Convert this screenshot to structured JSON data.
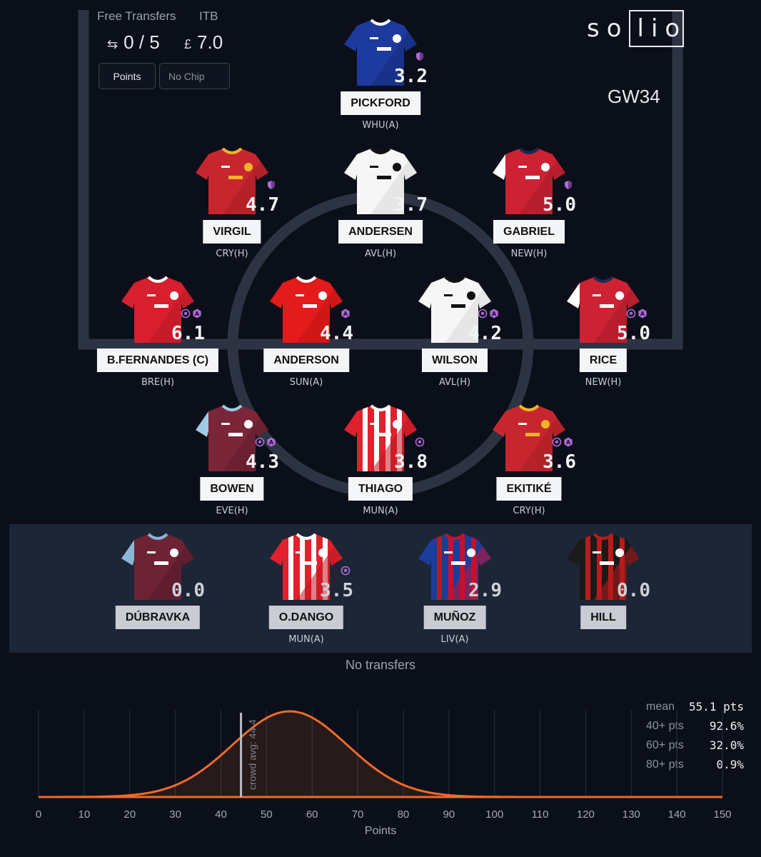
{
  "header": {
    "free_transfers_label": "Free Transfers",
    "free_transfers_value": "0 / 5",
    "itb_label": "ITB",
    "itb_value": "7.0",
    "currency": "£",
    "points_button": "Points",
    "chip_select": "No Chip",
    "logo": "so",
    "logo_boxed": "lio",
    "gameweek": "GW34"
  },
  "colors": {
    "background": "#0b0f19",
    "pitch_lines": "#2c3444",
    "bench_bg": "#1d2637",
    "curve": "#f06a2a",
    "badge": "#b06ad8"
  },
  "starting_xi": [
    {
      "name": "PICKFORD",
      "xp": "3.2",
      "fixture": "WHU(A)",
      "kit": "everton",
      "badges": [
        "shield-icon"
      ]
    },
    {
      "name": "VIRGIL",
      "xp": "4.7",
      "fixture": "CRY(H)",
      "kit": "liverpool",
      "badges": [
        "shield-icon"
      ]
    },
    {
      "name": "ANDERSEN",
      "xp": "3.7",
      "fixture": "AVL(H)",
      "kit": "fulham",
      "badges": []
    },
    {
      "name": "GABRIEL",
      "xp": "5.0",
      "fixture": "NEW(H)",
      "kit": "arsenal",
      "badges": [
        "shield-icon"
      ]
    },
    {
      "name": "B.FERNANDES  (C)",
      "xp": "6.1",
      "fixture": "BRE(H)",
      "kit": "manutd",
      "badges": [
        "ball-icon",
        "assist-icon"
      ]
    },
    {
      "name": "ANDERSON",
      "xp": "4.4",
      "fixture": "SUN(A)",
      "kit": "forest",
      "badges": [
        "assist-icon"
      ]
    },
    {
      "name": "WILSON",
      "xp": "4.2",
      "fixture": "AVL(H)",
      "kit": "fulham",
      "badges": [
        "ball-icon",
        "assist-icon"
      ]
    },
    {
      "name": "RICE",
      "xp": "5.0",
      "fixture": "NEW(H)",
      "kit": "arsenal",
      "badges": [
        "ball-icon",
        "assist-icon"
      ]
    },
    {
      "name": "BOWEN",
      "xp": "4.3",
      "fixture": "EVE(H)",
      "kit": "westham",
      "badges": [
        "ball-icon",
        "assist-icon"
      ]
    },
    {
      "name": "THIAGO",
      "xp": "3.8",
      "fixture": "MUN(A)",
      "kit": "brentford",
      "badges": [
        "ball-icon"
      ]
    },
    {
      "name": "EKITIKÉ",
      "xp": "3.6",
      "fixture": "CRY(H)",
      "kit": "liverpool",
      "badges": [
        "ball-icon",
        "assist-icon"
      ]
    }
  ],
  "bench": [
    {
      "name": "DÚBRAVKA",
      "xp": "0.0",
      "fixture": "",
      "kit": "burnley",
      "badges": []
    },
    {
      "name": "O.DANGO",
      "xp": "3.5",
      "fixture": "MUN(A)",
      "kit": "brentford",
      "badges": [
        "ball-icon"
      ]
    },
    {
      "name": "MUÑOZ",
      "xp": "2.9",
      "fixture": "LIV(A)",
      "kit": "palace",
      "badges": []
    },
    {
      "name": "HILL",
      "xp": "0.0",
      "fixture": "",
      "kit": "bournemouth",
      "badges": []
    }
  ],
  "transfers_text": "No transfers",
  "stats": [
    {
      "label": "mean",
      "value": "55.1 pts"
    },
    {
      "label": "40+ pts",
      "value": "92.6%"
    },
    {
      "label": "60+ pts",
      "value": "32.0%"
    },
    {
      "label": "80+ pts",
      "value": "0.9%"
    }
  ],
  "chart_data": {
    "type": "area",
    "title": "",
    "xlabel": "Points",
    "ylabel": "",
    "xlim": [
      0,
      150
    ],
    "xticks": [
      0,
      10,
      20,
      30,
      40,
      50,
      60,
      70,
      80,
      90,
      100,
      110,
      120,
      130,
      140,
      150
    ],
    "grid": "vertical",
    "distribution": {
      "mean": 55.1,
      "sd": 12.6
    },
    "annotation": {
      "label": "crowd avg: 44.4",
      "x": 44.4
    }
  }
}
